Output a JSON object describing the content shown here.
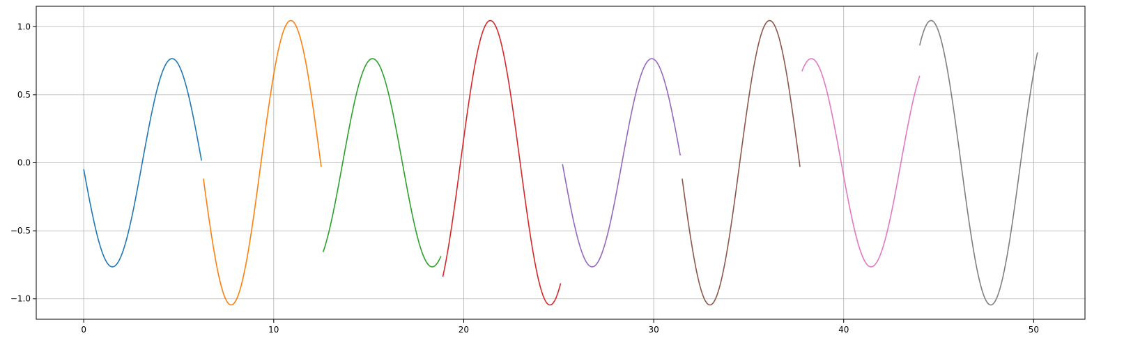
{
  "chart_data": {
    "type": "line",
    "title": "",
    "xlabel": "",
    "ylabel": "",
    "xlim": [
      -2.5,
      52.7
    ],
    "ylim": [
      -1.15,
      1.15
    ],
    "xticks": [
      0,
      10,
      20,
      30,
      40,
      50
    ],
    "yticks": [
      -1.0,
      -0.5,
      0.0,
      0.5,
      1.0
    ],
    "xtick_labels": [
      "0",
      "10",
      "20",
      "30",
      "40",
      "50"
    ],
    "ytick_labels": [
      "−1.0",
      "−0.5",
      "0.0",
      "0.5",
      "1.0"
    ],
    "grid": true,
    "legend": "none",
    "series": [
      {
        "color": "#1f77b4",
        "x_start": 0.0,
        "x_end": 6.2,
        "amplitude": 0.765,
        "peak_x": 4.65,
        "samples": [
          [
            0.0,
            -0.07
          ],
          [
            1.45,
            -0.765
          ],
          [
            4.65,
            0.765
          ],
          [
            6.2,
            0.0
          ]
        ]
      },
      {
        "color": "#ff7f0e",
        "x_start": 6.3,
        "x_end": 12.5,
        "amplitude": 1.045,
        "peak_x": 10.9,
        "samples": [
          [
            6.3,
            -0.11
          ],
          [
            7.8,
            -1.045
          ],
          [
            10.9,
            1.045
          ],
          [
            12.5,
            -0.02
          ]
        ]
      },
      {
        "color": "#2ca02c",
        "x_start": 12.6,
        "x_end": 18.8,
        "amplitude": 0.765,
        "peak_x": 15.2,
        "samples": [
          [
            12.6,
            -0.64
          ],
          [
            15.2,
            0.765
          ],
          [
            18.3,
            -0.765
          ],
          [
            18.8,
            -0.67
          ]
        ]
      },
      {
        "color": "#d62728",
        "x_start": 18.9,
        "x_end": 25.1,
        "amplitude": 1.045,
        "peak_x": 21.4,
        "samples": [
          [
            18.9,
            -0.86
          ],
          [
            21.4,
            1.045
          ],
          [
            24.6,
            -1.045
          ],
          [
            25.1,
            -0.91
          ]
        ]
      },
      {
        "color": "#9467bd",
        "x_start": 25.2,
        "x_end": 31.4,
        "amplitude": 0.765,
        "peak_x": 29.9,
        "samples": [
          [
            25.2,
            0.02
          ],
          [
            26.7,
            -0.765
          ],
          [
            29.9,
            0.765
          ],
          [
            31.4,
            0.08
          ]
        ]
      },
      {
        "color": "#8c564b",
        "x_start": 31.5,
        "x_end": 37.7,
        "amplitude": 1.045,
        "peak_x": 36.1,
        "samples": [
          [
            31.5,
            0.01
          ],
          [
            33.0,
            -1.045
          ],
          [
            36.1,
            1.045
          ],
          [
            37.7,
            0.19
          ]
        ]
      },
      {
        "color": "#e377c2",
        "x_start": 37.8,
        "x_end": 44.0,
        "amplitude": 0.765,
        "peak_x": 38.3,
        "samples": [
          [
            37.8,
            0.69
          ],
          [
            38.3,
            0.765
          ],
          [
            41.4,
            -0.765
          ],
          [
            44.0,
            0.62
          ]
        ]
      },
      {
        "color": "#7f7f7f",
        "x_start": 44.0,
        "x_end": 50.2,
        "amplitude": 1.045,
        "peak_x": 44.6,
        "samples": [
          [
            44.0,
            0.95
          ],
          [
            44.6,
            1.045
          ],
          [
            47.7,
            -1.045
          ],
          [
            50.2,
            0.86
          ]
        ]
      }
    ]
  }
}
